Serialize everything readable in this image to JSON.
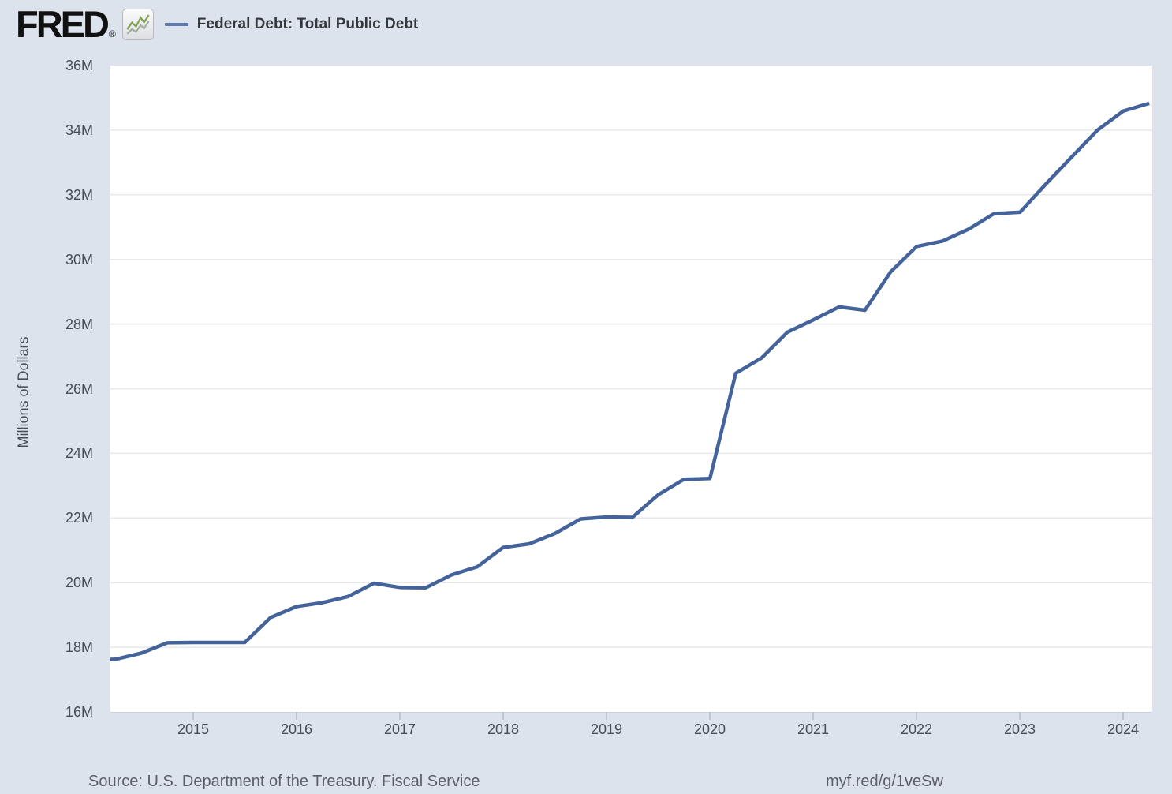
{
  "header": {
    "logo_text": "FRED",
    "registered_mark": "®",
    "logo_icon": "line-chart-squiggle-icon",
    "legend": {
      "swatch": "blue-line-dash",
      "label": "Federal Debt: Total Public Debt"
    }
  },
  "footer": {
    "source_text": "Source: U.S. Department of the Treasury. Fiscal Service",
    "short_url": "myf.red/g/1veSw"
  },
  "colors": {
    "page_background": "#dce3ec",
    "plot_background": "#ffffff",
    "gridline": "#e8e8e8",
    "axis_line": "#ccd2d9",
    "tick_mark": "#bfc5cc",
    "tick_label": "#474d54",
    "series_line": "#44639a",
    "legend_dash": "#5b79ae",
    "legend_text": "#33383d",
    "footer_text": "#5a6066",
    "logo_text": "#111111"
  },
  "chart_data": {
    "type": "line",
    "title": "Federal Debt: Total Public Debt",
    "xlabel": "",
    "ylabel": "Millions of Dollars",
    "x_unit": "year (quarterly observations, plotted at quarter start)",
    "y_unit": "axis ticks in M = millions of millions of dollars (e.g. 18M = 18,000,000 million USD)",
    "xlim": [
      2014.2,
      2024.28
    ],
    "ylim": [
      16,
      36
    ],
    "grid": "horizontal only",
    "legend_position": "top header, left",
    "x_ticks": [
      2015,
      2016,
      2017,
      2018,
      2019,
      2020,
      2021,
      2022,
      2023,
      2024
    ],
    "y_ticks": [
      {
        "value": 36,
        "label": "36M"
      },
      {
        "value": 34,
        "label": "34M"
      },
      {
        "value": 32,
        "label": "32M"
      },
      {
        "value": 30,
        "label": "30M"
      },
      {
        "value": 28,
        "label": "28M"
      },
      {
        "value": 26,
        "label": "26M"
      },
      {
        "value": 24,
        "label": "24M"
      },
      {
        "value": 22,
        "label": "22M"
      },
      {
        "value": 20,
        "label": "20M"
      },
      {
        "value": 18,
        "label": "18M"
      },
      {
        "value": 16,
        "label": "16M"
      }
    ],
    "series": [
      {
        "name": "Federal Debt: Total Public Debt",
        "color": "#44639a",
        "points": [
          [
            2014.0,
            17.6
          ],
          [
            2014.25,
            17.63
          ],
          [
            2014.5,
            17.82
          ],
          [
            2014.75,
            18.14
          ],
          [
            2015.0,
            18.15
          ],
          [
            2015.25,
            18.15
          ],
          [
            2015.5,
            18.15
          ],
          [
            2015.75,
            18.92
          ],
          [
            2016.0,
            19.26
          ],
          [
            2016.25,
            19.38
          ],
          [
            2016.5,
            19.57
          ],
          [
            2016.75,
            19.98
          ],
          [
            2017.0,
            19.85
          ],
          [
            2017.25,
            19.84
          ],
          [
            2017.5,
            20.24
          ],
          [
            2017.75,
            20.49
          ],
          [
            2018.0,
            21.09
          ],
          [
            2018.25,
            21.2
          ],
          [
            2018.5,
            21.52
          ],
          [
            2018.75,
            21.97
          ],
          [
            2019.0,
            22.03
          ],
          [
            2019.25,
            22.02
          ],
          [
            2019.5,
            22.72
          ],
          [
            2019.75,
            23.2
          ],
          [
            2020.0,
            23.22
          ],
          [
            2020.25,
            26.48
          ],
          [
            2020.5,
            26.95
          ],
          [
            2020.75,
            27.75
          ],
          [
            2021.0,
            28.13
          ],
          [
            2021.25,
            28.53
          ],
          [
            2021.5,
            28.43
          ],
          [
            2021.75,
            29.62
          ],
          [
            2022.0,
            30.4
          ],
          [
            2022.25,
            30.57
          ],
          [
            2022.5,
            30.93
          ],
          [
            2022.75,
            31.42
          ],
          [
            2023.0,
            31.46
          ],
          [
            2023.25,
            32.33
          ],
          [
            2023.5,
            33.17
          ],
          [
            2023.75,
            34.0
          ],
          [
            2024.0,
            34.59
          ],
          [
            2024.25,
            34.83
          ]
        ]
      }
    ]
  }
}
